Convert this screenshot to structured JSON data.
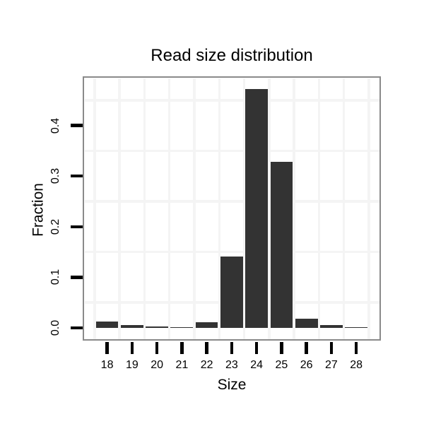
{
  "chart_data": {
    "type": "bar",
    "title": "Read size distribution",
    "xlabel": "Size",
    "ylabel": "Fraction",
    "categories": [
      18,
      19,
      20,
      21,
      22,
      23,
      24,
      25,
      26,
      27,
      28
    ],
    "values": [
      0.012,
      0.005,
      0.003,
      0.002,
      0.011,
      0.141,
      0.472,
      0.328,
      0.018,
      0.006,
      0.002
    ],
    "x_tick_labels": [
      "18",
      "19",
      "20",
      "21",
      "22",
      "23",
      "24",
      "25",
      "26",
      "27",
      "28"
    ],
    "y_tick_values": [
      0.0,
      0.1,
      0.2,
      0.3,
      0.4
    ],
    "y_tick_labels": [
      "0.0",
      "0.1",
      "0.2",
      "0.3",
      "0.4"
    ],
    "xlim": [
      17.09,
      29.0
    ],
    "ylim": [
      -0.022,
      0.497
    ],
    "bar_rel_width": 0.9,
    "grid": "minor gridlines only, no major gridlines",
    "x_minor_gridlines": [
      17.5,
      18.5,
      19.5,
      20.5,
      21.5,
      22.5,
      23.5,
      24.5,
      25.5,
      26.5,
      27.5,
      28.5
    ],
    "y_minor_gridlines": [
      0.05,
      0.15,
      0.25,
      0.35,
      0.45
    ],
    "legend": "none",
    "colors": {
      "bar": "#333333",
      "gridline": "#f4f4f4",
      "panel_border": "#8a8a8a",
      "panel_background": "#ffffff",
      "figure_background": "#ffffff",
      "tick": "#000000",
      "text": "#000000"
    }
  }
}
